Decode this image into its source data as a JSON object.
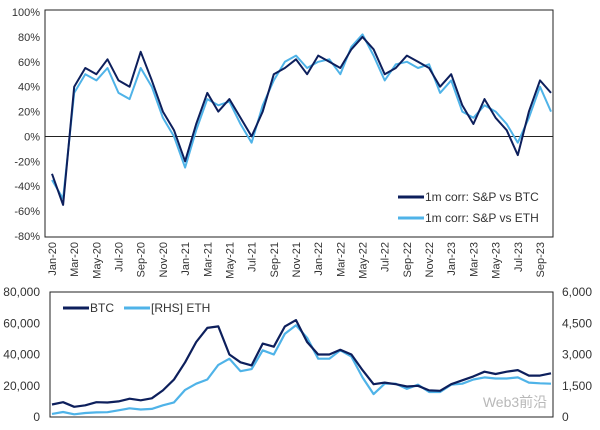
{
  "chart_data": [
    {
      "type": "line",
      "x": [
        "Jan-20",
        "Feb-20",
        "Mar-20",
        "Apr-20",
        "May-20",
        "Jun-20",
        "Jul-20",
        "Aug-20",
        "Sep-20",
        "Oct-20",
        "Nov-20",
        "Dec-20",
        "Jan-21",
        "Feb-21",
        "Mar-21",
        "Apr-21",
        "May-21",
        "Jun-21",
        "Jul-21",
        "Aug-21",
        "Sep-21",
        "Oct-21",
        "Nov-21",
        "Dec-21",
        "Jan-22",
        "Feb-22",
        "Mar-22",
        "Apr-22",
        "May-22",
        "Jun-22",
        "Jul-22",
        "Aug-22",
        "Sep-22",
        "Oct-22",
        "Nov-22",
        "Dec-22",
        "Jan-23",
        "Feb-23",
        "Mar-23",
        "Apr-23",
        "May-23",
        "Jun-23",
        "Jul-23",
        "Aug-23",
        "Sep-23",
        "Oct-23"
      ],
      "tick_labels": [
        "Jan-20",
        "Mar-20",
        "May-20",
        "Jul-20",
        "Sep-20",
        "Nov-20",
        "Jan-21",
        "Mar-21",
        "May-21",
        "Jul-21",
        "Sep-21",
        "Nov-21",
        "Jan-22",
        "Mar-22",
        "May-22",
        "Jul-22",
        "Sep-22",
        "Nov-22",
        "Jan-23",
        "Mar-23",
        "May-23",
        "Jul-23",
        "Sep-23"
      ],
      "y_ticks": [
        "100%",
        "80%",
        "60%",
        "40%",
        "20%",
        "0%",
        "-20%",
        "-40%",
        "-60%",
        "-80%"
      ],
      "ylim": [
        -80,
        100
      ],
      "y_unit": "%",
      "grid": false,
      "legend_placement": "bottom-right",
      "series": [
        {
          "name": "1m corr: S&P vs BTC",
          "color": "#0d1f5c",
          "values": [
            -30,
            -55,
            40,
            55,
            50,
            62,
            45,
            40,
            68,
            45,
            20,
            5,
            -20,
            10,
            35,
            20,
            30,
            15,
            0,
            20,
            50,
            55,
            62,
            50,
            65,
            60,
            55,
            70,
            80,
            70,
            50,
            55,
            65,
            60,
            55,
            40,
            50,
            25,
            10,
            30,
            15,
            5,
            -15,
            20,
            45,
            35
          ]
        },
        {
          "name": "1m corr: S&P vs ETH",
          "color": "#4fb3e8",
          "values": [
            -35,
            -50,
            35,
            50,
            45,
            55,
            35,
            30,
            55,
            40,
            15,
            0,
            -25,
            5,
            30,
            25,
            28,
            10,
            -5,
            25,
            45,
            60,
            65,
            55,
            60,
            62,
            50,
            72,
            82,
            65,
            45,
            58,
            60,
            55,
            58,
            35,
            45,
            20,
            15,
            25,
            20,
            10,
            -5,
            15,
            40,
            20
          ]
        }
      ]
    },
    {
      "type": "line",
      "x": [
        "Jan-20",
        "Feb-20",
        "Mar-20",
        "Apr-20",
        "May-20",
        "Jun-20",
        "Jul-20",
        "Aug-20",
        "Sep-20",
        "Oct-20",
        "Nov-20",
        "Dec-20",
        "Jan-21",
        "Feb-21",
        "Mar-21",
        "Apr-21",
        "May-21",
        "Jun-21",
        "Jul-21",
        "Aug-21",
        "Sep-21",
        "Oct-21",
        "Nov-21",
        "Dec-21",
        "Jan-22",
        "Feb-22",
        "Mar-22",
        "Apr-22",
        "May-22",
        "Jun-22",
        "Jul-22",
        "Aug-22",
        "Sep-22",
        "Oct-22",
        "Nov-22",
        "Dec-22",
        "Jan-23",
        "Feb-23",
        "Mar-23",
        "Apr-23",
        "May-23",
        "Jun-23",
        "Jul-23",
        "Aug-23",
        "Sep-23",
        "Oct-23"
      ],
      "y_ticks_left": [
        "80,000",
        "60,000",
        "40,000",
        "20,000",
        "0"
      ],
      "y_ticks_right": [
        "6,000",
        "4,500",
        "3,000",
        "1,500",
        "0"
      ],
      "ylim_left": [
        0,
        80000
      ],
      "ylim_right": [
        0,
        6000
      ],
      "grid": false,
      "legend_placement": "top-left",
      "series": [
        {
          "name": "BTC",
          "axis": "left",
          "color": "#0d1f5c",
          "values": [
            8000,
            9500,
            6500,
            7500,
            9500,
            9300,
            10000,
            11700,
            10700,
            12000,
            17000,
            24000,
            35000,
            48000,
            57000,
            58000,
            40000,
            35000,
            33000,
            47000,
            45000,
            58000,
            62000,
            48000,
            40000,
            40000,
            43000,
            40000,
            30000,
            21000,
            22000,
            21000,
            19500,
            20000,
            17000,
            16800,
            21000,
            23500,
            26000,
            29000,
            27500,
            29000,
            30000,
            26500,
            26500,
            28000
          ]
        },
        {
          "name": "[RHS] ETH",
          "axis": "right",
          "color": "#4fb3e8",
          "values": [
            150,
            240,
            130,
            190,
            220,
            230,
            320,
            420,
            360,
            390,
            560,
            700,
            1300,
            1600,
            1800,
            2500,
            2800,
            2200,
            2300,
            3200,
            3000,
            4000,
            4400,
            3800,
            2800,
            2800,
            3200,
            2900,
            1900,
            1100,
            1600,
            1600,
            1350,
            1550,
            1200,
            1200,
            1550,
            1600,
            1800,
            1900,
            1850,
            1850,
            1900,
            1650,
            1620,
            1600
          ]
        }
      ]
    }
  ],
  "watermark": "Web3前沿"
}
